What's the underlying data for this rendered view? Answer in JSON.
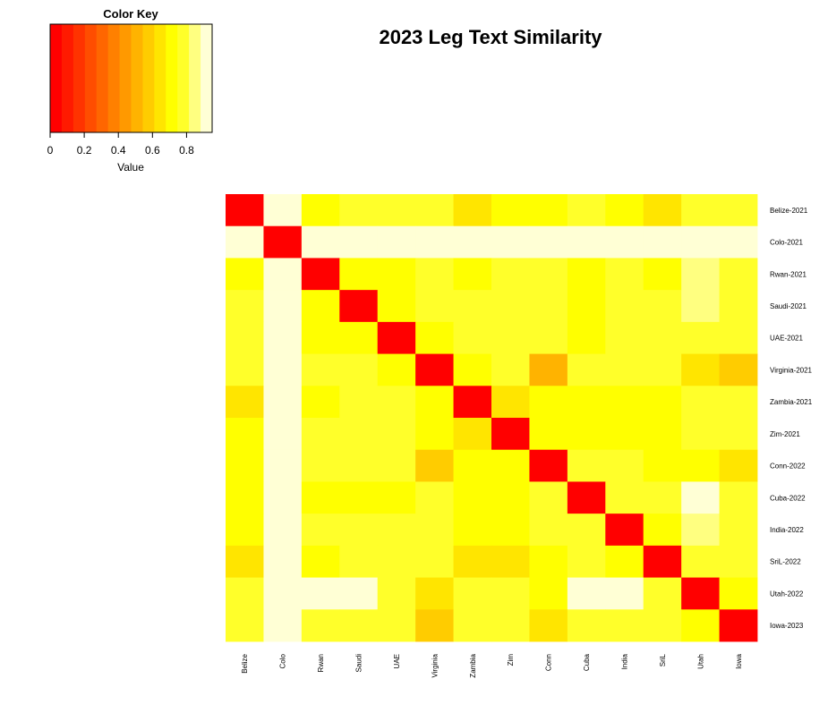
{
  "chart_data": {
    "type": "heatmap",
    "title": "2023 Leg Text Similarity",
    "color_key": {
      "title": "Color Key",
      "xlabel": "Value",
      "ticks": [
        0,
        0.2,
        0.4,
        0.6,
        0.8
      ],
      "tick_labels": [
        "0",
        "0.2",
        "0.4",
        "0.6",
        "0.8"
      ],
      "range": [
        0,
        0.95
      ],
      "colors": [
        "#FF0000",
        "#FF1A00",
        "#FF3300",
        "#FF4D00",
        "#FF6600",
        "#FF8000",
        "#FF9900",
        "#FFB300",
        "#FFCC00",
        "#FFE500",
        "#FFFF00",
        "#FFFF2A",
        "#FFFF80",
        "#FFFFD5"
      ]
    },
    "row_labels": [
      "Belize-2021",
      "Colo-2021",
      "Rwan-2021",
      "Saudi-2021",
      "UAE-2021",
      "Virginia-2021",
      "Zambia-2021",
      "Zim-2021",
      "Conn-2022",
      "Cuba-2022",
      "India-2022",
      "SriL-2022",
      "Utah-2022",
      "Iowa-2023"
    ],
    "col_labels": [
      "Belize",
      "Colo",
      "Rwan",
      "Saudi",
      "UAE",
      "Virginia",
      "Zambia",
      "Zim",
      "Conn",
      "Cuba",
      "India",
      "SriL",
      "Utah",
      "Iowa"
    ],
    "values": [
      [
        0.0,
        0.95,
        0.72,
        0.75,
        0.75,
        0.75,
        0.65,
        0.73,
        0.74,
        0.77,
        0.72,
        0.66,
        0.75,
        0.75
      ],
      [
        0.95,
        0.0,
        0.95,
        0.95,
        0.95,
        0.95,
        0.95,
        0.95,
        0.95,
        0.95,
        0.95,
        0.95,
        0.95,
        0.95
      ],
      [
        0.72,
        0.95,
        0.0,
        0.71,
        0.71,
        0.76,
        0.72,
        0.76,
        0.76,
        0.73,
        0.76,
        0.72,
        0.88,
        0.76
      ],
      [
        0.75,
        0.95,
        0.71,
        0.0,
        0.72,
        0.77,
        0.77,
        0.77,
        0.77,
        0.74,
        0.77,
        0.77,
        0.88,
        0.77
      ],
      [
        0.75,
        0.95,
        0.74,
        0.72,
        0.0,
        0.71,
        0.76,
        0.76,
        0.76,
        0.74,
        0.77,
        0.77,
        0.77,
        0.77
      ],
      [
        0.75,
        0.95,
        0.76,
        0.76,
        0.71,
        0.0,
        0.71,
        0.76,
        0.54,
        0.77,
        0.77,
        0.77,
        0.66,
        0.56
      ],
      [
        0.66,
        0.95,
        0.72,
        0.76,
        0.76,
        0.71,
        0.0,
        0.66,
        0.73,
        0.73,
        0.73,
        0.68,
        0.76,
        0.76
      ],
      [
        0.73,
        0.95,
        0.76,
        0.76,
        0.76,
        0.74,
        0.66,
        0.0,
        0.73,
        0.73,
        0.73,
        0.68,
        0.76,
        0.76
      ],
      [
        0.74,
        0.95,
        0.76,
        0.76,
        0.76,
        0.56,
        0.73,
        0.73,
        0.0,
        0.77,
        0.77,
        0.74,
        0.74,
        0.66
      ],
      [
        0.72,
        0.95,
        0.73,
        0.73,
        0.73,
        0.77,
        0.73,
        0.73,
        0.77,
        0.0,
        0.77,
        0.77,
        0.9,
        0.77
      ],
      [
        0.72,
        0.95,
        0.76,
        0.76,
        0.76,
        0.77,
        0.73,
        0.73,
        0.77,
        0.77,
        0.0,
        0.73,
        0.86,
        0.77
      ],
      [
        0.66,
        0.95,
        0.72,
        0.76,
        0.76,
        0.76,
        0.67,
        0.67,
        0.74,
        0.77,
        0.73,
        0.0,
        0.77,
        0.77
      ],
      [
        0.77,
        0.95,
        0.9,
        0.9,
        0.77,
        0.66,
        0.76,
        0.76,
        0.74,
        0.92,
        0.92,
        0.77,
        0.0,
        0.73
      ],
      [
        0.76,
        0.95,
        0.76,
        0.76,
        0.76,
        0.56,
        0.76,
        0.76,
        0.66,
        0.77,
        0.77,
        0.77,
        0.73,
        0.0
      ]
    ],
    "legend_position": "top-left"
  }
}
